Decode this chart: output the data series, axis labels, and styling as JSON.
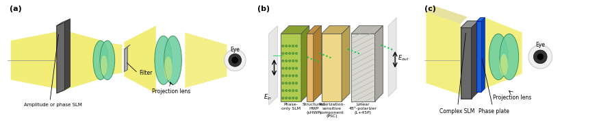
{
  "label_a": "(a)",
  "label_b": "(b)",
  "label_c": "(c)",
  "text_amplitude_slm": "Amplitude or phase SLM",
  "text_filter": "Filter",
  "text_projection_lens_a": "Projection lens",
  "text_eye_a": "Eye",
  "text_phase_only_slm": "Phase-\nonly SLM",
  "text_shwp": "Structured\nHWP\n(sHWP)",
  "text_psc": "Polarization-\nsensitive\ncomponent\n(PSC)",
  "text_l45p": "Linear\n45°-polarizer\n(L+45P)",
  "text_projection_lens_c": "Projection lens",
  "text_complex_slm": "Complex SLM",
  "text_phase_plate": "Phase plate",
  "text_eye_c": "Eye",
  "yellow": "#ede84a",
  "yellow_light": "#f5f27a",
  "green_lens": "#6ecfa0",
  "green_dark": "#2a8a55",
  "slm_gray": "#686868",
  "slm_dark": "#3a3a3a",
  "slm_top": "#909090",
  "blue_plate": "#1a5fcb",
  "blue_dark": "#0033aa",
  "lime_panel": "#b8cc58",
  "lime_dark": "#8aaa30",
  "cream_panel": "#e8d898",
  "orange_panel": "#e8c870",
  "silver_panel": "#d8d8d0",
  "filter_gray": "#b0b0b8",
  "eye_white": "#f0f0f0",
  "eye_iris": "#404040",
  "Ein": "$E_{in}$",
  "Eout": "$E_{out}$"
}
